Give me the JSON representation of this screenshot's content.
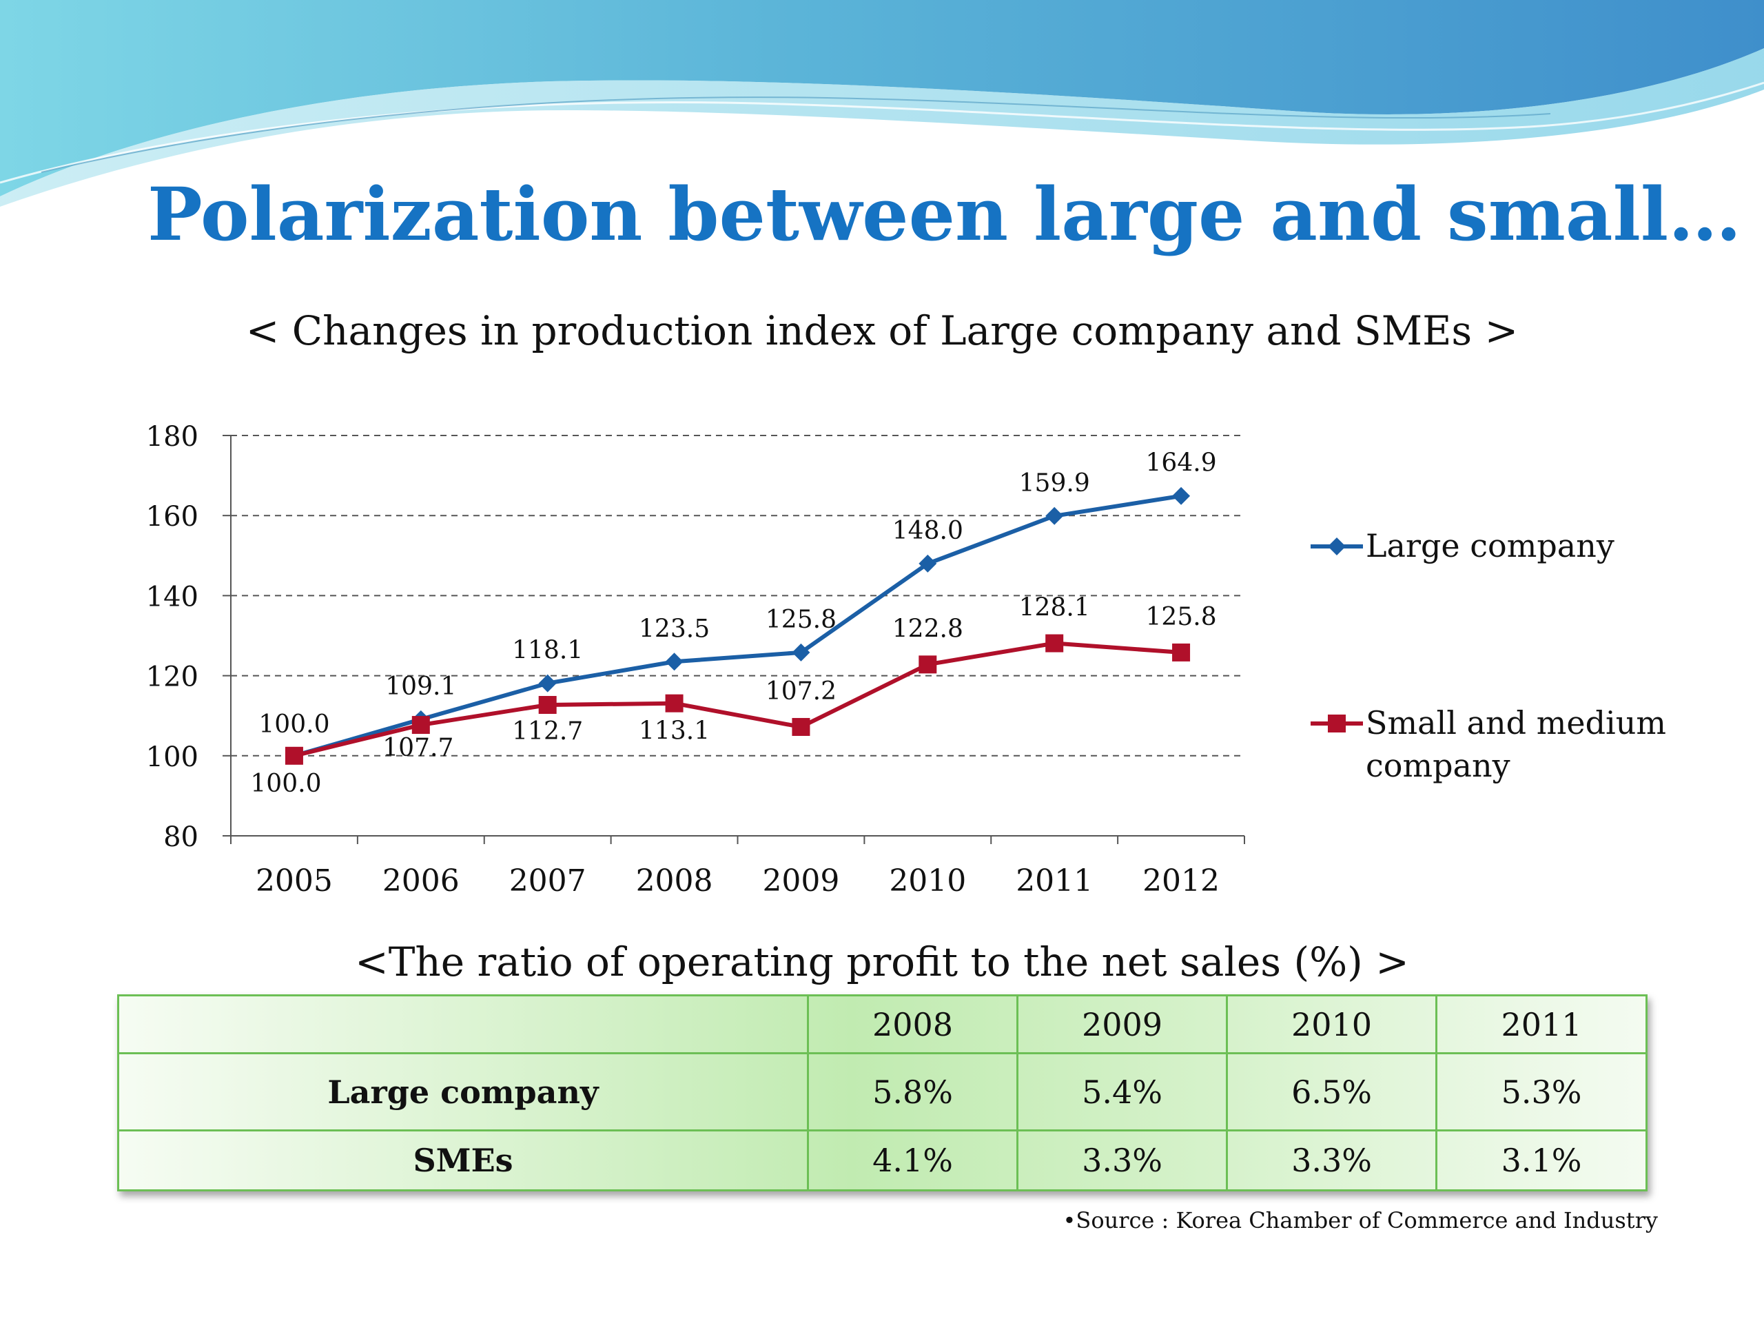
{
  "slide": {
    "title": "Polarization between large and small…",
    "source": "•Source : Korea Chamber of Commerce and Industry"
  },
  "colors": {
    "title": "#1673c3",
    "large_company": "#1b5fa6",
    "sme": "#b0102a",
    "table_border": "#6cbf55"
  },
  "chart_data": {
    "type": "line",
    "title": "< Changes in production index of Large company and  SMEs >",
    "categories": [
      "2005",
      "2006",
      "2007",
      "2008",
      "2009",
      "2010",
      "2011",
      "2012"
    ],
    "series": [
      {
        "name": "Large company",
        "marker": "diamond",
        "values": [
          100.0,
          109.1,
          118.1,
          123.5,
          125.8,
          148.0,
          159.9,
          164.9
        ],
        "labels": [
          "100.0",
          "109.1",
          "118.1",
          "123.5",
          "125.8",
          "148.0",
          "159.9",
          "164.9"
        ]
      },
      {
        "name": "Small and medium company",
        "marker": "square",
        "values": [
          100.0,
          107.7,
          112.7,
          113.1,
          107.2,
          122.8,
          128.1,
          125.8
        ],
        "labels": [
          "100.0",
          "107.7",
          "112.7",
          "113.1",
          "107.2",
          "122.8",
          "128.1",
          "125.8"
        ]
      }
    ],
    "ylim": [
      80,
      180
    ],
    "yticks": [
      80,
      100,
      120,
      140,
      160,
      180
    ],
    "grid": "horizontal dashed",
    "legend_position": "right"
  },
  "table": {
    "title": "<The ratio of operating profit to the net sales (%) >",
    "columns": [
      "",
      "2008",
      "2009",
      "2010",
      "2011"
    ],
    "rows": [
      {
        "label": "Large company",
        "values": [
          "5.8%",
          "5.4%",
          "6.5%",
          "5.3%"
        ]
      },
      {
        "label": "SMEs",
        "values": [
          "4.1%",
          "3.3%",
          "3.3%",
          "3.1%"
        ]
      }
    ]
  }
}
